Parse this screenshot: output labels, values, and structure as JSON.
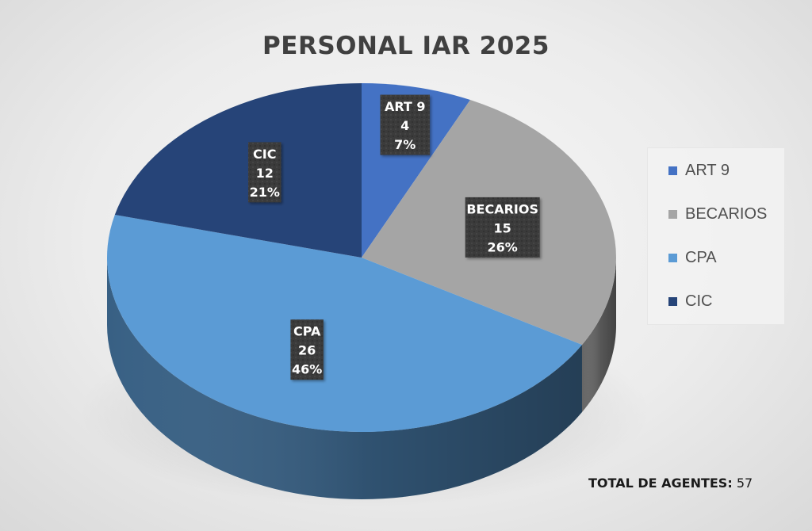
{
  "chart_data": {
    "type": "pie",
    "title": "PERSONAL IAR 2025",
    "categories": [
      "ART 9",
      "BECARIOS",
      "CPA",
      "CIC"
    ],
    "values": [
      4,
      15,
      26,
      12
    ],
    "percentages": [
      "7%",
      "26%",
      "46%",
      "21%"
    ],
    "colors": [
      "#4472c4",
      "#a5a5a5",
      "#5b9bd5",
      "#264478"
    ],
    "legend": [
      "ART 9",
      "BECARIOS",
      "CPA",
      "CIC"
    ],
    "legend_position": "right",
    "style": "3d"
  },
  "footer": {
    "label": "TOTAL DE AGENTES:",
    "value": "57"
  }
}
